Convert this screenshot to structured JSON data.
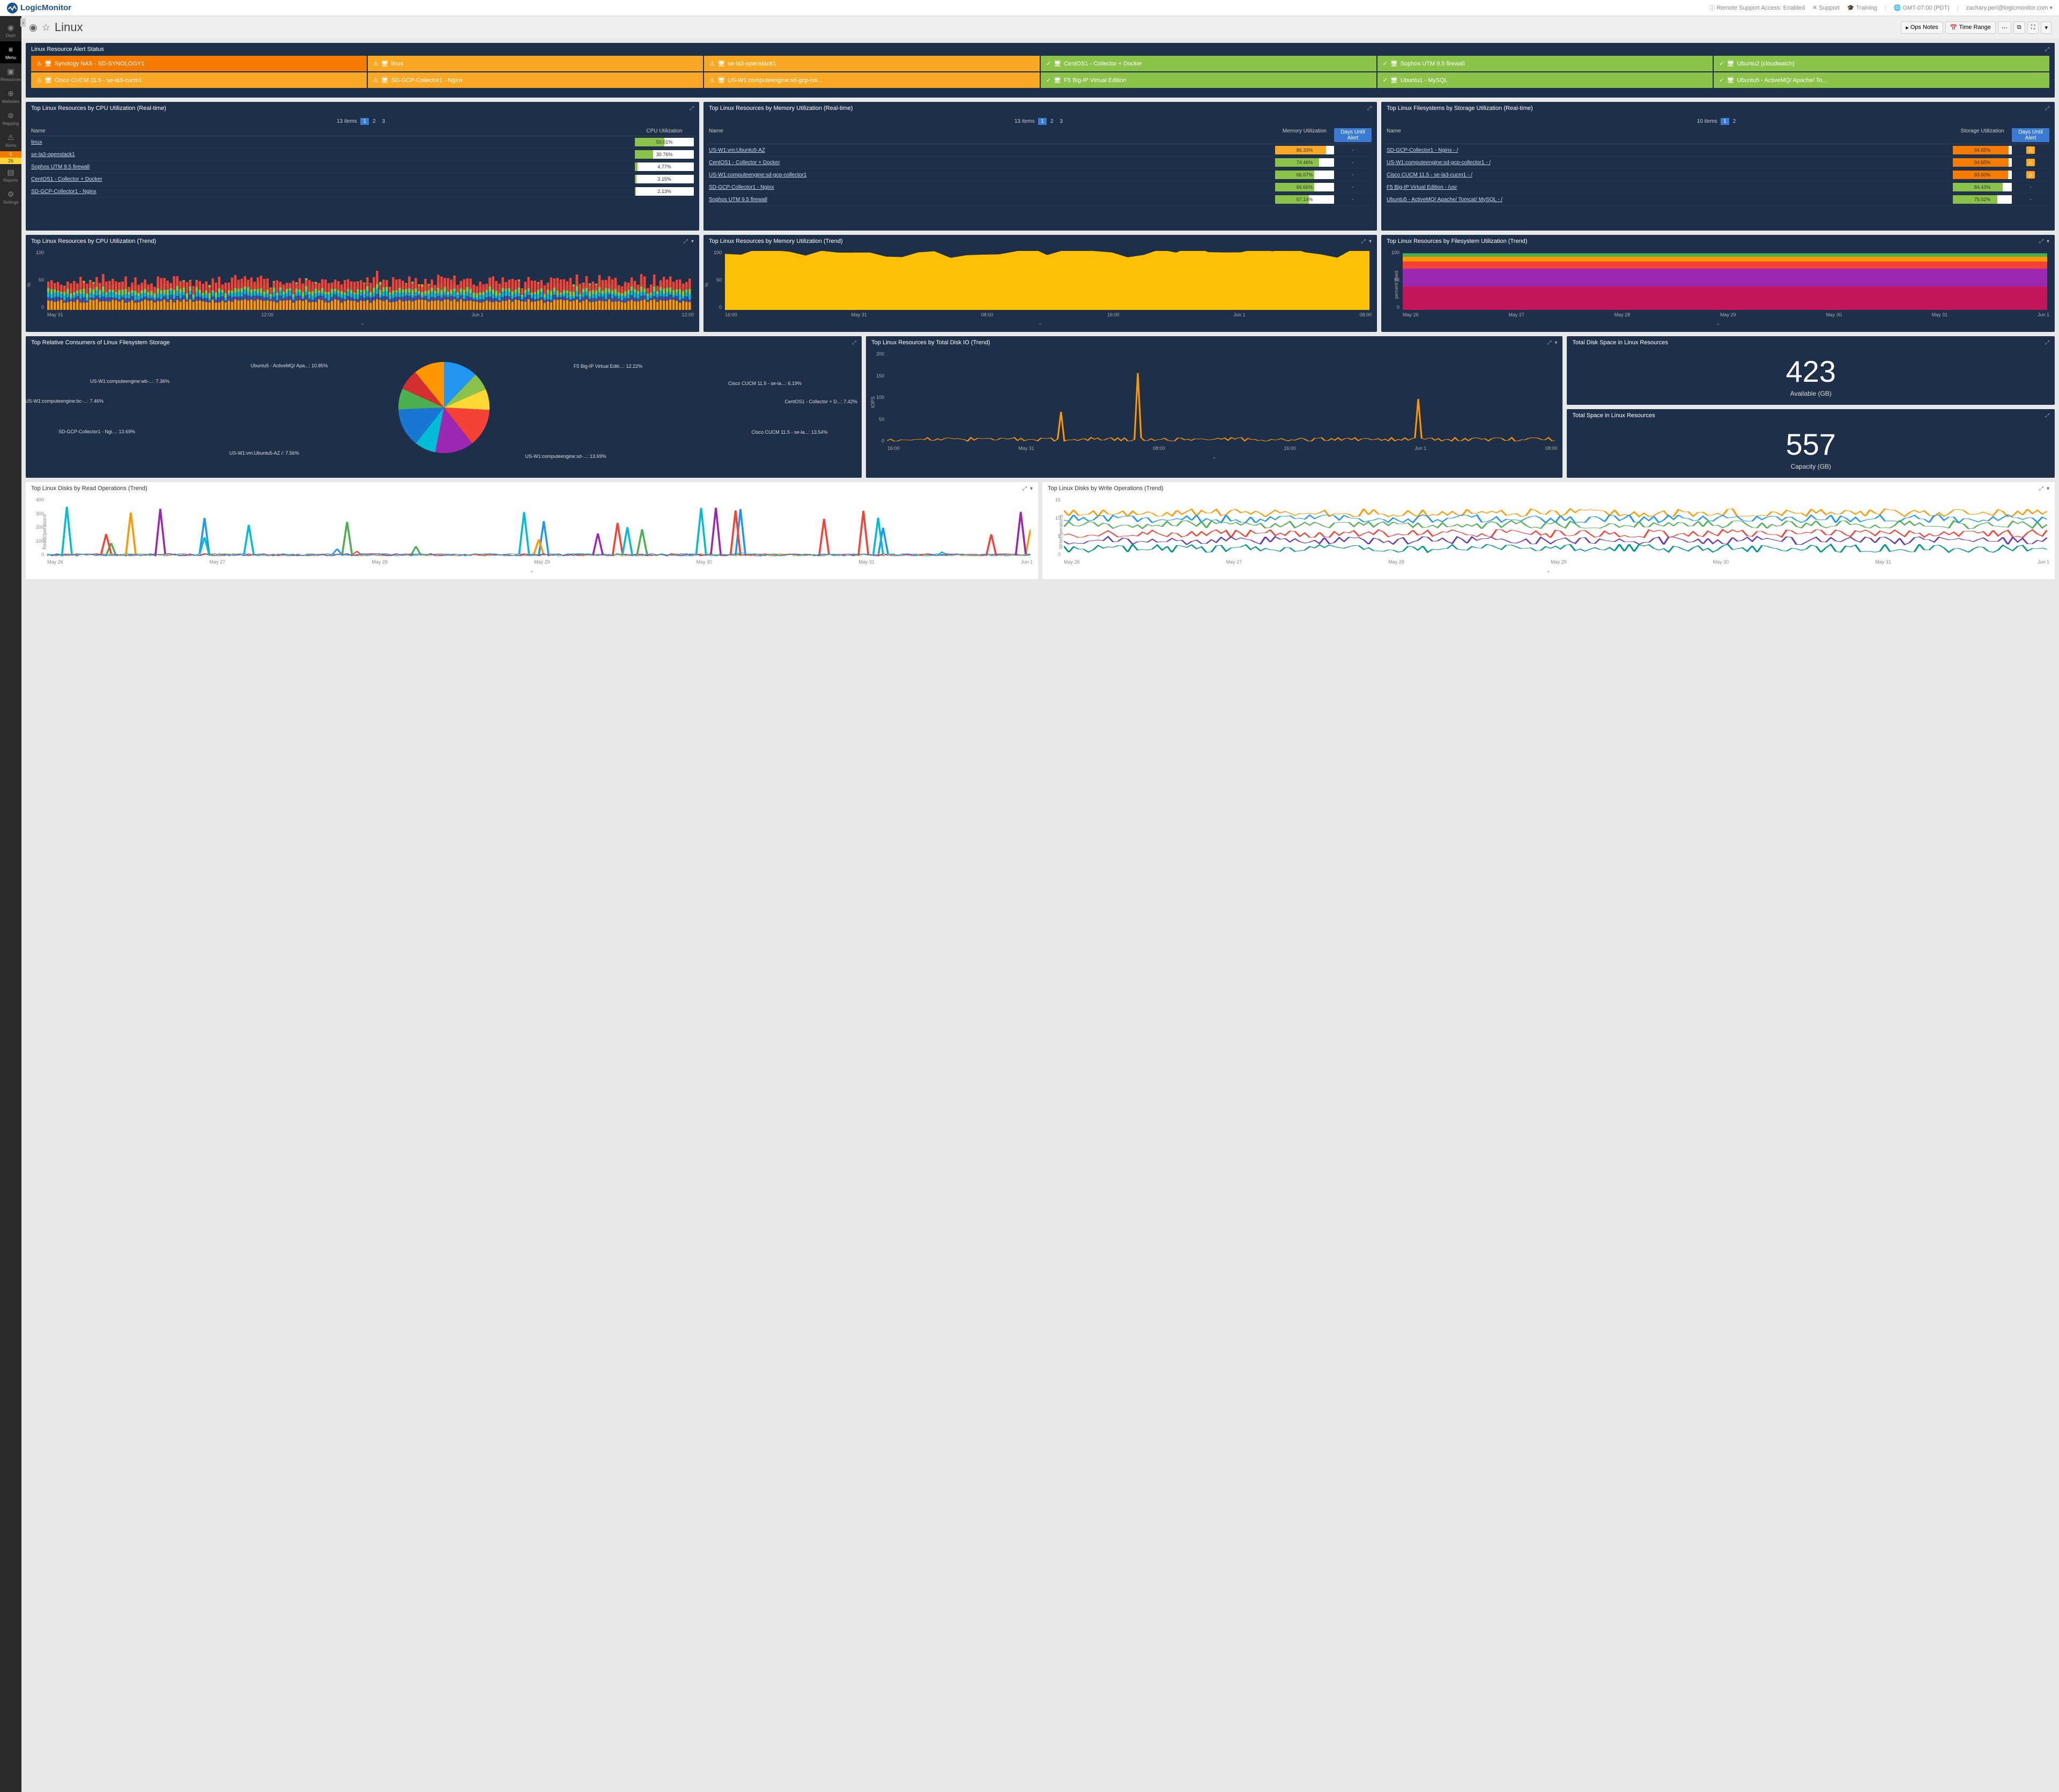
{
  "header": {
    "brand": "LogicMonitor",
    "remote_support": "Remote Support Access: Enabled",
    "support": "Support",
    "training": "Training",
    "timezone": "GMT-07:00 (PDT)",
    "user": "zachary.perl@logicmonitor.com"
  },
  "sidebar": {
    "items": [
      {
        "label": "Dash",
        "icon": "◉"
      },
      {
        "label": "Menu",
        "icon": "≡",
        "active": true
      },
      {
        "label": "Resources",
        "icon": "▣"
      },
      {
        "label": "Websites",
        "icon": "⊕"
      },
      {
        "label": "Mapping",
        "icon": "⊚"
      },
      {
        "label": "Alerts",
        "icon": "⚠"
      },
      {
        "label": "Reports",
        "icon": "▤"
      },
      {
        "label": "Settings",
        "icon": "⚙"
      }
    ],
    "badges": [
      {
        "count": "5",
        "cls": "badge-orange"
      },
      {
        "count": "26",
        "cls": "badge-yellow"
      }
    ]
  },
  "titlebar": {
    "title": "Linux",
    "ops_notes": "Ops Notes",
    "time_range": "Time Range"
  },
  "alert_widget": {
    "title": "Linux Resource Alert Status",
    "cells": [
      {
        "cls": "ac-orange",
        "label": "Synology NAS - SD-SYNOLOGY1",
        "check": false
      },
      {
        "cls": "ac-yellow",
        "label": "linux",
        "check": false
      },
      {
        "cls": "ac-yellow",
        "label": "se-la3-openstack1",
        "check": false
      },
      {
        "cls": "ac-green",
        "label": "CentOS1 - Collector + Docker",
        "check": true
      },
      {
        "cls": "ac-green",
        "label": "Sophos UTM 9.5 firewall",
        "check": true
      },
      {
        "cls": "ac-green",
        "label": "Ubuntu2 (cloudwatch)",
        "check": true
      },
      {
        "cls": "ac-yellow",
        "label": "Cisco CUCM 11.5 - se-la3-cucm1",
        "check": false
      },
      {
        "cls": "ac-yellow",
        "label": "SD-GCP-Collector1 - Nginx",
        "check": false
      },
      {
        "cls": "ac-yellow",
        "label": "US-W1:computeengine:sd-gcp-col...",
        "check": false
      },
      {
        "cls": "ac-green",
        "label": "F5 Big-IP Virtual Edition",
        "check": true
      },
      {
        "cls": "ac-green",
        "label": "Ubuntu1 - MySQL",
        "check": true
      },
      {
        "cls": "ac-green",
        "label": "Ubuntu5 - ActiveMQ/ Apache/ To...",
        "check": true
      }
    ]
  },
  "cpu_list": {
    "title": "Top Linux Resources by CPU Utilization (Real-time)",
    "count": "13 items",
    "pages": [
      "1",
      "2",
      "3"
    ],
    "head_name": "Name",
    "head_val": "CPU Utilization",
    "rows": [
      {
        "name": "linux",
        "pct": 50.01,
        "color": "#8bc34a"
      },
      {
        "name": "se-la3-openstack1",
        "pct": 30.76,
        "color": "#8bc34a"
      },
      {
        "name": "Sophos UTM 9.5 firewall",
        "pct": 4.77,
        "color": "#8bc34a"
      },
      {
        "name": "CentOS1 - Collector + Docker",
        "pct": 3.15,
        "color": "#8bc34a"
      },
      {
        "name": "SD-GCP-Collector1 - Nginx",
        "pct": 2.13,
        "color": "#8bc34a"
      }
    ]
  },
  "mem_list": {
    "title": "Top Linux Resources by Memory Utilization (Real-time)",
    "count": "13 items",
    "pages": [
      "1",
      "2",
      "3"
    ],
    "head_name": "Name",
    "head_val": "Memory Utilization",
    "head_days": "Days Until Alert",
    "rows": [
      {
        "name": "US-W1:vm:Ubuntu5-AZ",
        "pct": 86.33,
        "color": "#f9a825",
        "days": "-"
      },
      {
        "name": "CentOS1 - Collector + Docker",
        "pct": 74.46,
        "color": "#8bc34a",
        "days": "-"
      },
      {
        "name": "US-W1:computeengine:sd-gcp-collector1",
        "pct": 66.67,
        "color": "#8bc34a",
        "days": "-"
      },
      {
        "name": "SD-GCP-Collector1 - Nginx",
        "pct": 66.66,
        "color": "#8bc34a",
        "days": "-"
      },
      {
        "name": "Sophos UTM 9.5 firewall",
        "pct": 57.14,
        "color": "#8bc34a",
        "days": "-"
      }
    ]
  },
  "fs_list": {
    "title": "Top Linux Filesystems by Storage Utilization (Real-time)",
    "count": "10 items",
    "pages": [
      "1",
      "2"
    ],
    "head_name": "Name",
    "head_val": "Storage Utilization",
    "head_days": "Days Until Alert",
    "rows": [
      {
        "name": "SD-GCP-Collector1 - Nginx - /",
        "pct": 94.65,
        "color": "#f57c00",
        "warn": true
      },
      {
        "name": "US-W1:computeengine:sd-gcp-collector1 - /",
        "pct": 94.65,
        "color": "#f57c00",
        "warn": true
      },
      {
        "name": "Cisco CUCM 11.5 - se-la3-cucm1 - /",
        "pct": 93.6,
        "color": "#f57c00",
        "warn": true
      },
      {
        "name": "F5 Big-IP Virtual Edition - /usr",
        "pct": 84.43,
        "color": "#8bc34a",
        "days": "-"
      },
      {
        "name": "Ubuntu5 - ActiveMQ/ Apache/ Tomcat/ MySQL - /",
        "pct": 75.02,
        "color": "#8bc34a",
        "days": "-"
      }
    ]
  },
  "cpu_trend": {
    "title": "Top Linux Resources by CPU Utilization (Trend)",
    "ylabel": "%",
    "yticks": [
      "100",
      "50",
      "0"
    ],
    "xticks": [
      "May 31",
      "12:00",
      "Jun 1",
      "12:00"
    ]
  },
  "mem_trend": {
    "title": "Top Linux Resources by Memory Utilization (Trend)",
    "ylabel": "%",
    "yticks": [
      "100",
      "50",
      "0"
    ],
    "xticks": [
      "16:00",
      "May 31",
      "08:00",
      "16:00",
      "Jun 1",
      "08:00"
    ]
  },
  "fs_trend": {
    "title": "Top Linux Resources by Filesystem Utilization (Trend)",
    "ylabel": "percent used",
    "yticks": [
      "100",
      "50",
      "0"
    ],
    "xticks": [
      "May 26",
      "May 27",
      "May 28",
      "May 29",
      "May 30",
      "May 31",
      "Jun 1"
    ]
  },
  "pie": {
    "title": "Top Relative Consumers of Linux Filesystem Storage",
    "slices": [
      {
        "label": "F5 Big-IP Virtual Editi...: 12.22%",
        "value": 12.22,
        "color": "#2196f3"
      },
      {
        "label": "Cisco CUCM 11.5 - se-la...: 6.19%",
        "value": 6.19,
        "color": "#8bc34a"
      },
      {
        "label": "CentOS1 - Collector + D...: 7.42%",
        "value": 7.42,
        "color": "#fdd835"
      },
      {
        "label": "Cisco CUCM 11.5 - se-la...: 13.54%",
        "value": 13.54,
        "color": "#f44336"
      },
      {
        "label": "US-W1:computeengine:sd-...: 13.69%",
        "value": 13.69,
        "color": "#9c27b0"
      },
      {
        "label": "US-W1:vm:Ubuntu5-AZ /: 7.56%",
        "value": 7.56,
        "color": "#00bcd4"
      },
      {
        "label": "SD-GCP-Collector1 - Ngi...: 13.69%",
        "value": 13.69,
        "color": "#1976d2"
      },
      {
        "label": "US-W1:computeengine:bc-...: 7.46%",
        "value": 7.46,
        "color": "#4caf50"
      },
      {
        "label": "US-W1:computeengine:wb-...: 7.36%",
        "value": 7.36,
        "color": "#d32f2f"
      },
      {
        "label": "Ubuntu5 - ActiveMQ/ Apa...: 10.85%",
        "value": 10.85,
        "color": "#ff9800"
      }
    ]
  },
  "diskio": {
    "title": "Top Linux Resources by Total Disk IO (Trend)",
    "ylabel": "IOPS",
    "yticks": [
      "200",
      "150",
      "100",
      "50",
      "0"
    ],
    "xticks": [
      "16:00",
      "May 31",
      "08:00",
      "16:00",
      "Jun 1",
      "08:00"
    ]
  },
  "avail": {
    "title": "Total Disk Space in Linux Resources",
    "value": "423",
    "caption": "Available (GB)"
  },
  "capacity": {
    "title": "Total Space in Linux Resources",
    "value": "557",
    "caption": "Capacity (GB)"
  },
  "read_ops": {
    "title": "Top Linux Disks by Read Operations (Trend)",
    "ylabel": "ReadOperations",
    "yticks": [
      "400",
      "300",
      "200",
      "100",
      "0"
    ],
    "xticks": [
      "May 26",
      "May 27",
      "May 28",
      "May 29",
      "May 30",
      "May 31",
      "Jun 1"
    ]
  },
  "write_ops": {
    "title": "Top Linux Disks by Write Operations (Trend)",
    "ylabel": "WriteOperations",
    "yticks": [
      "15",
      "10",
      "5",
      "0"
    ],
    "xticks": [
      "May 26",
      "May 27",
      "May 28",
      "May 29",
      "May 30",
      "May 31",
      "Jun 1"
    ]
  },
  "chart_colors": {
    "area_stack": [
      "#ff9800",
      "#3f51b5",
      "#00bcd4",
      "#8bc34a",
      "#f44336",
      "#ffc107"
    ],
    "fs_stack": [
      "#c2185b",
      "#9c27b0",
      "#f44336",
      "#ff9800",
      "#4caf50"
    ],
    "spike_lines": [
      "#4caf50",
      "#2196f3",
      "#ff9800",
      "#f44336",
      "#9c27b0",
      "#00bcd4"
    ],
    "write_lines": [
      "#ff9800",
      "#2196f3",
      "#4caf50",
      "#f44336",
      "#673ab7",
      "#009688"
    ]
  }
}
